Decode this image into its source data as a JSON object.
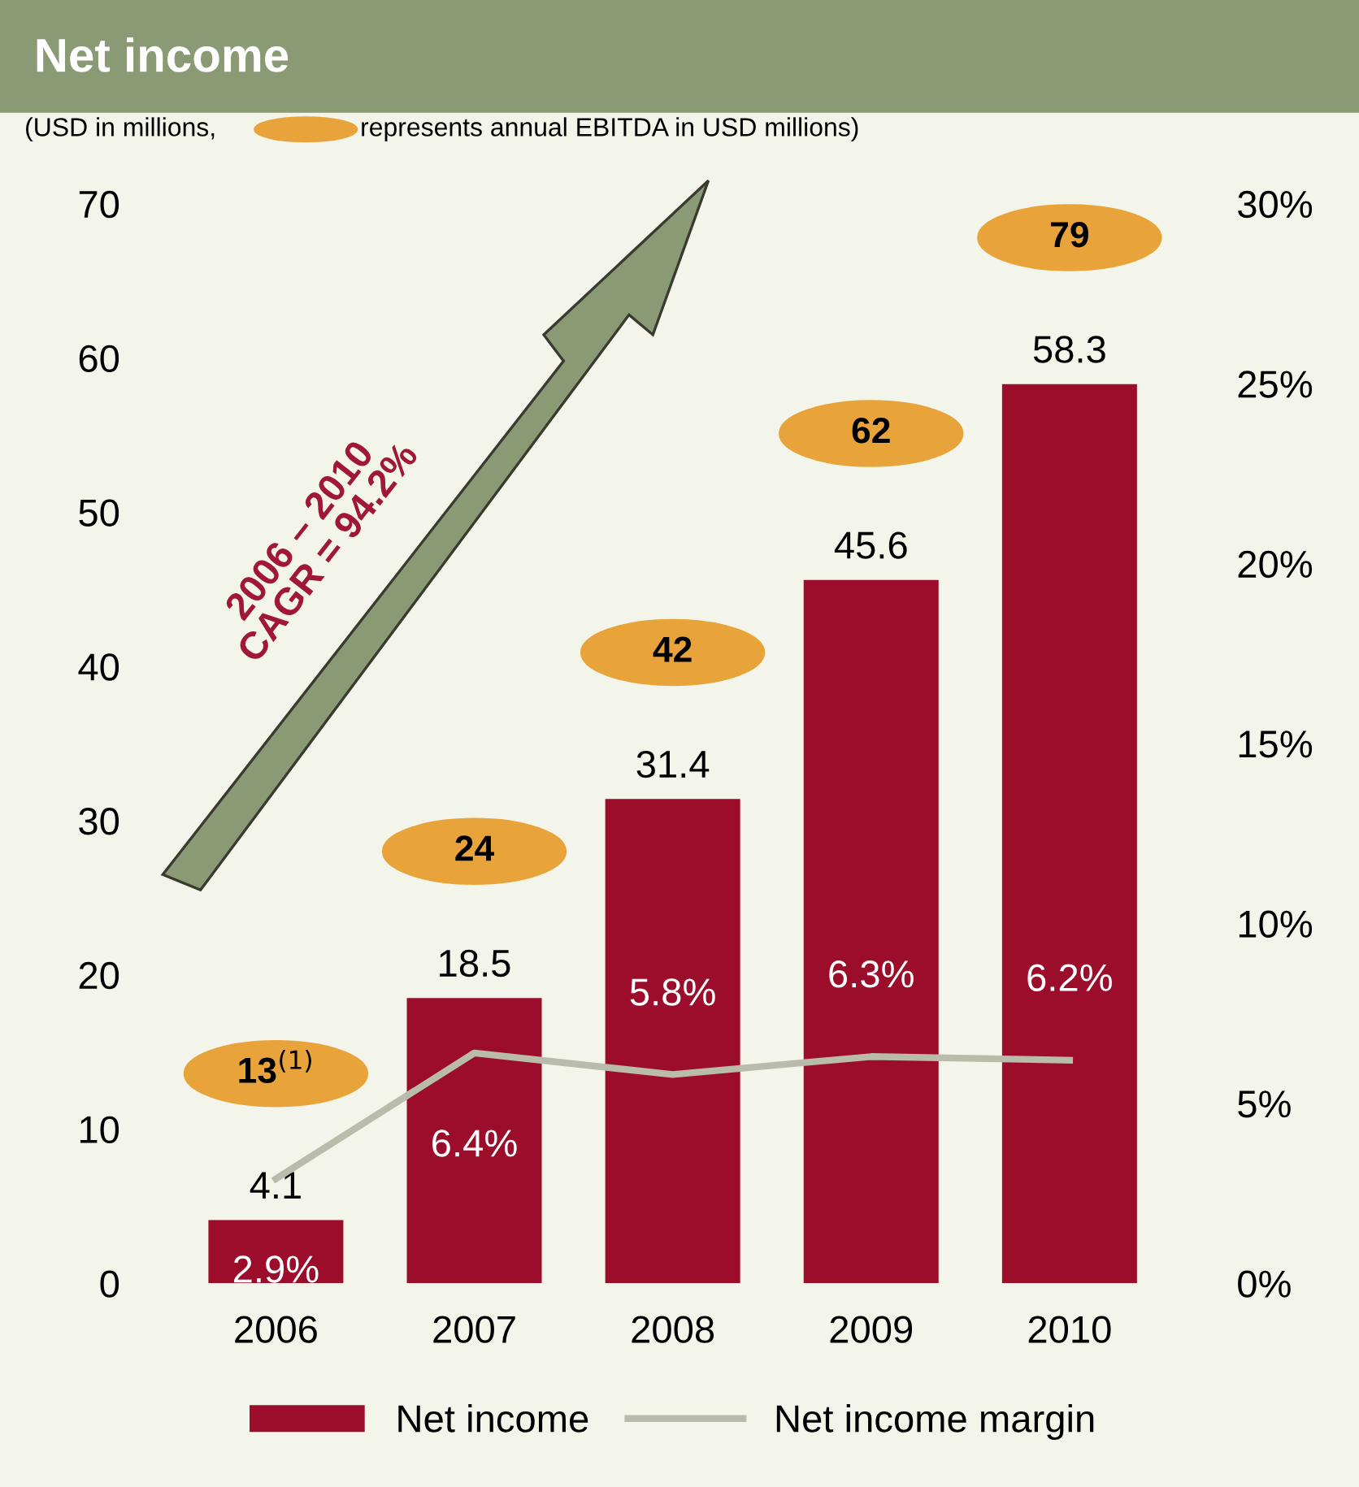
{
  "chart_data": {
    "type": "bar",
    "title": "Net income",
    "subtitle": "(USD in millions,",
    "categories": [
      "2006",
      "2007",
      "2008",
      "2009",
      "2010"
    ],
    "series": [
      {
        "name": "Net income",
        "color": "#9b0d2b",
        "values": [
          4.1,
          18.5,
          31.4,
          45.6,
          58.3
        ],
        "value_labels": [
          "4.1",
          "18.5",
          "31.4",
          "45.6",
          "58.3"
        ]
      },
      {
        "name": "Net income margin",
        "type": "line",
        "axis": "y2",
        "color": "#b9bcaa",
        "values": [
          2.9,
          6.4,
          5.8,
          6.3,
          6.2
        ],
        "value_labels": [
          "2.9%",
          "6.4%",
          "5.8%",
          "6.3%",
          "6.2%"
        ]
      }
    ],
    "ylim": [
      0,
      70
    ],
    "yticks": [
      0,
      10,
      20,
      30,
      40,
      50,
      60,
      70
    ],
    "y2lim": [
      0,
      30
    ],
    "y2ticks": [
      {
        "value": 0,
        "label": "0%"
      },
      {
        "value": 5,
        "label": "5%"
      },
      {
        "value": 10,
        "label": "10%"
      },
      {
        "value": 15,
        "label": "15%"
      },
      {
        "value": 20,
        "label": "20%"
      },
      {
        "value": 25,
        "label": "25%"
      },
      {
        "value": 30,
        "label": "30%"
      }
    ],
    "annotations": [
      "represents annual EBITDA in USD millions)",
      "2006 – 2010\nCAGR = 94.2%",
      "13$^{(1)}$",
      "24",
      "42",
      "62",
      "79"
    ],
    "grid": false,
    "legend": "bottom"
  }
}
